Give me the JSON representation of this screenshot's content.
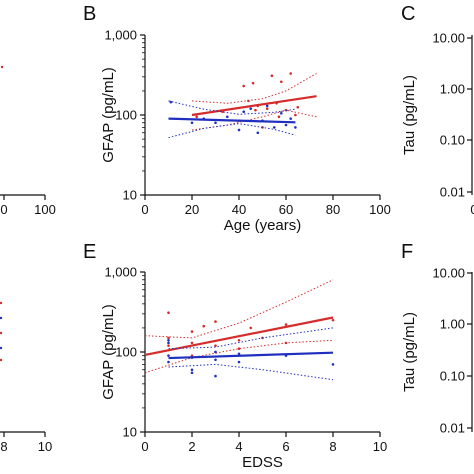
{
  "colors": {
    "red": "#d62c2c",
    "blue": "#1f2fbf",
    "axis": "#111111"
  },
  "chart_data": [
    {
      "panel": "A",
      "type": "scatter",
      "partial": true,
      "x_ticks": [
        "0",
        "100"
      ],
      "points_red": [
        [
          0,
          4.0
        ],
        [
          0,
          4.3
        ]
      ],
      "points_blue": []
    },
    {
      "panel": "B",
      "type": "scatter",
      "xlabel": "Age (years)",
      "ylabel": "GFAP (pg/mL)",
      "x_ticks": [
        "0",
        "20",
        "40",
        "60",
        "80",
        "100"
      ],
      "xlim": [
        0,
        100
      ],
      "y_scale": "log",
      "ylim": [
        10,
        1000
      ],
      "y_ticks": [
        {
          "value": 10,
          "label": "10"
        },
        {
          "value": 100,
          "label": "100"
        },
        {
          "value": 1000,
          "label": "1,000"
        }
      ],
      "series": [
        {
          "color": "red",
          "points": [
            [
              22,
              95
            ],
            [
              33,
              110
            ],
            [
              40,
              85
            ],
            [
              42,
              230
            ],
            [
              44,
              150
            ],
            [
              46,
              250
            ],
            [
              47,
              115
            ],
            [
              48,
              130
            ],
            [
              50,
              70
            ],
            [
              52,
              120
            ],
            [
              54,
              310
            ],
            [
              56,
              140
            ],
            [
              57,
              95
            ],
            [
              58,
              260
            ],
            [
              60,
              115
            ],
            [
              62,
              330
            ],
            [
              64,
              100
            ],
            [
              65,
              125
            ]
          ],
          "fit": {
            "x": [
              20,
              73
            ],
            "y": [
              100,
              172
            ]
          },
          "ci_upper": [
            [
              20,
              150
            ],
            [
              35,
              140
            ],
            [
              50,
              160
            ],
            [
              60,
              200
            ],
            [
              73,
              330
            ]
          ],
          "ci_lower": [
            [
              20,
              65
            ],
            [
              35,
              75
            ],
            [
              50,
              95
            ],
            [
              60,
              115
            ],
            [
              73,
              95
            ]
          ]
        },
        {
          "color": "blue",
          "points": [
            [
              11,
              145
            ],
            [
              20,
              80
            ],
            [
              25,
              90
            ],
            [
              30,
              80
            ],
            [
              35,
              95
            ],
            [
              40,
              65
            ],
            [
              42,
              110
            ],
            [
              45,
              120
            ],
            [
              48,
              60
            ],
            [
              50,
              85
            ],
            [
              52,
              130
            ],
            [
              55,
              70
            ],
            [
              58,
              105
            ],
            [
              60,
              75
            ],
            [
              62,
              90
            ],
            [
              64,
              70
            ]
          ],
          "fit": {
            "x": [
              10,
              64
            ],
            "y": [
              90,
              81
            ]
          },
          "ci_upper": [
            [
              10,
              150
            ],
            [
              25,
              118
            ],
            [
              40,
              102
            ],
            [
              55,
              108
            ],
            [
              64,
              118
            ]
          ],
          "ci_lower": [
            [
              10,
              52
            ],
            [
              25,
              68
            ],
            [
              40,
              78
            ],
            [
              55,
              66
            ],
            [
              64,
              56
            ]
          ]
        }
      ]
    },
    {
      "panel": "C",
      "type": "scatter",
      "partial": true,
      "ylabel": "Tau (pg/mL)",
      "y_ticks": [
        "10.00",
        "1.00",
        "0.10",
        "0.01"
      ],
      "x_ticks": [
        "0"
      ]
    },
    {
      "panel": "D",
      "type": "scatter",
      "partial": true,
      "x_ticks": [
        "8",
        "10"
      ],
      "points_red": [
        [
          9.9,
          3.7
        ],
        [
          9.9,
          4.05
        ],
        [
          9.9,
          4.4
        ]
      ],
      "points_blue": [
        [
          9.9,
          3.85
        ],
        [
          9.9,
          4.2
        ]
      ]
    },
    {
      "panel": "E",
      "type": "scatter",
      "xlabel": "EDSS",
      "ylabel": "GFAP (pg/mL)",
      "x_ticks": [
        "0",
        "2",
        "4",
        "6",
        "8",
        "10"
      ],
      "xlim": [
        0,
        10
      ],
      "y_scale": "log",
      "ylim": [
        10,
        1000
      ],
      "y_ticks": [
        {
          "value": 10,
          "label": "10"
        },
        {
          "value": 100,
          "label": "100"
        },
        {
          "value": 1000,
          "label": "1,000"
        }
      ],
      "series": [
        {
          "color": "red",
          "points": [
            [
              1,
              310
            ],
            [
              1,
              150
            ],
            [
              1,
              120
            ],
            [
              2,
              130
            ],
            [
              2,
              180
            ],
            [
              2,
              90
            ],
            [
              2.5,
              210
            ],
            [
              3,
              240
            ],
            [
              3,
              120
            ],
            [
              3,
              100
            ],
            [
              4,
              110
            ],
            [
              4,
              140
            ],
            [
              4.5,
              200
            ],
            [
              5,
              150
            ],
            [
              6,
              220
            ],
            [
              6,
              130
            ],
            [
              8,
              250
            ]
          ],
          "fit": {
            "x": [
              0,
              8
            ],
            "y": [
              92,
              270
            ]
          },
          "ci_upper": [
            [
              0,
              160
            ],
            [
              2,
              150
            ],
            [
              4,
              230
            ],
            [
              6,
              420
            ],
            [
              8,
              800
            ]
          ],
          "ci_lower": [
            [
              0,
              55
            ],
            [
              2,
              85
            ],
            [
              4,
              110
            ],
            [
              6,
              130
            ],
            [
              8,
              140
            ]
          ]
        },
        {
          "color": "blue",
          "points": [
            [
              1,
              140
            ],
            [
              1,
              130
            ],
            [
              1,
              90
            ],
            [
              1,
              75
            ],
            [
              2,
              85
            ],
            [
              2,
              60
            ],
            [
              2,
              55
            ],
            [
              3,
              100
            ],
            [
              3,
              80
            ],
            [
              3,
              50
            ],
            [
              4,
              75
            ],
            [
              4,
              95
            ],
            [
              6,
              90
            ],
            [
              8,
              70
            ]
          ],
          "fit": {
            "x": [
              1,
              8
            ],
            "y": [
              84,
              98
            ]
          },
          "ci_upper": [
            [
              1,
              110
            ],
            [
              3,
              115
            ],
            [
              5,
              150
            ],
            [
              8,
              200
            ]
          ],
          "ci_lower": [
            [
              1,
              65
            ],
            [
              3,
              70
            ],
            [
              5,
              60
            ],
            [
              8,
              45
            ]
          ]
        }
      ]
    },
    {
      "panel": "F",
      "type": "scatter",
      "partial": true,
      "ylabel": "Tau (pg/mL)",
      "y_ticks": [
        "10.00",
        "1.00",
        "0.10",
        "0.01"
      ]
    }
  ]
}
